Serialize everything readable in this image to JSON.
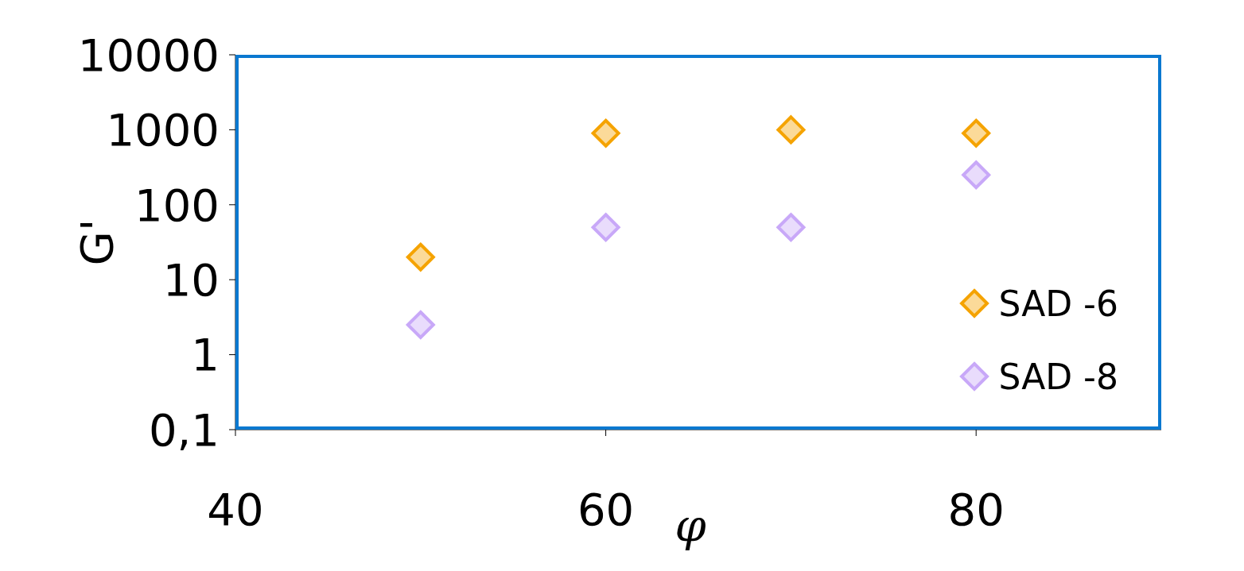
{
  "chart_data": {
    "type": "scatter",
    "xlabel": "φ",
    "ylabel": "G'",
    "xlim": [
      40,
      90
    ],
    "xticks": [
      40,
      60,
      80
    ],
    "ylim": [
      0.1,
      10000
    ],
    "yticks": [
      {
        "value": 0.1,
        "label": "0,1"
      },
      1,
      10,
      100,
      1000,
      10000
    ],
    "log": "y",
    "grid": false,
    "legend": "bottom right",
    "marker": "diamond",
    "series": [
      {
        "name": "SAD -6",
        "color": "#f5a300",
        "x": [
          50,
          60,
          70,
          80
        ],
        "values": [
          20,
          900,
          1000,
          900
        ]
      },
      {
        "name": "SAD -8",
        "color": "#c8a8f8",
        "x": [
          50,
          60,
          70,
          80
        ],
        "values": [
          2.5,
          50,
          50,
          250
        ]
      }
    ]
  }
}
